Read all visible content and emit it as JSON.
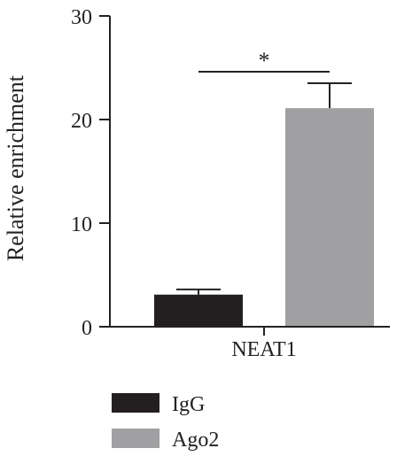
{
  "chart_data": {
    "type": "bar",
    "categories": [
      "NEAT1"
    ],
    "series": [
      {
        "name": "IgG",
        "values": [
          3.1
        ],
        "error": [
          0.5
        ],
        "color": "#231f20"
      },
      {
        "name": "Ago2",
        "values": [
          21.1
        ],
        "error": [
          2.4
        ],
        "color": "#a0a0a2"
      }
    ],
    "xlabel": "",
    "ylabel": "Relative enrichment",
    "ylim": [
      0,
      30
    ],
    "yticks": [
      0,
      10,
      20,
      30
    ],
    "grid": false,
    "legend": "bottom-left",
    "significance": {
      "label": "*",
      "between": [
        "IgG",
        "Ago2"
      ]
    }
  }
}
